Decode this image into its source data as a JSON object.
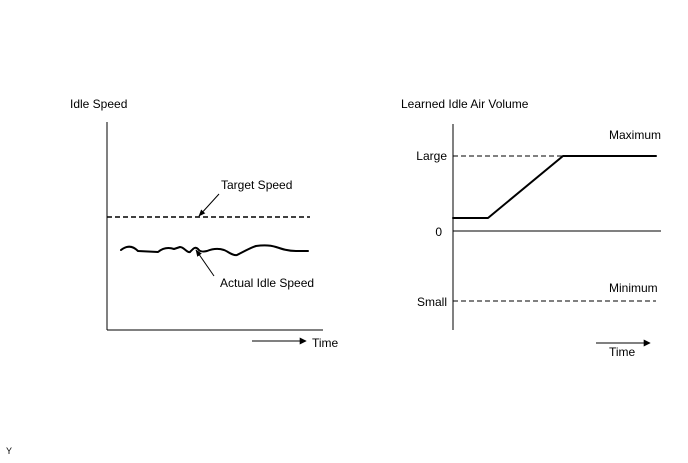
{
  "left_diagram": {
    "title": "Idle Speed",
    "x_label": "Time",
    "target_label": "Target Speed",
    "actual_label": "Actual Idle Speed"
  },
  "right_diagram": {
    "title": "Learned Idle Air Volume",
    "x_label": "Time",
    "y_ticks": {
      "large": "Large",
      "zero": "0",
      "small": "Small"
    },
    "maximum_label": "Maximum",
    "minimum_label": "Minimum"
  },
  "corner_mark": "Y"
}
